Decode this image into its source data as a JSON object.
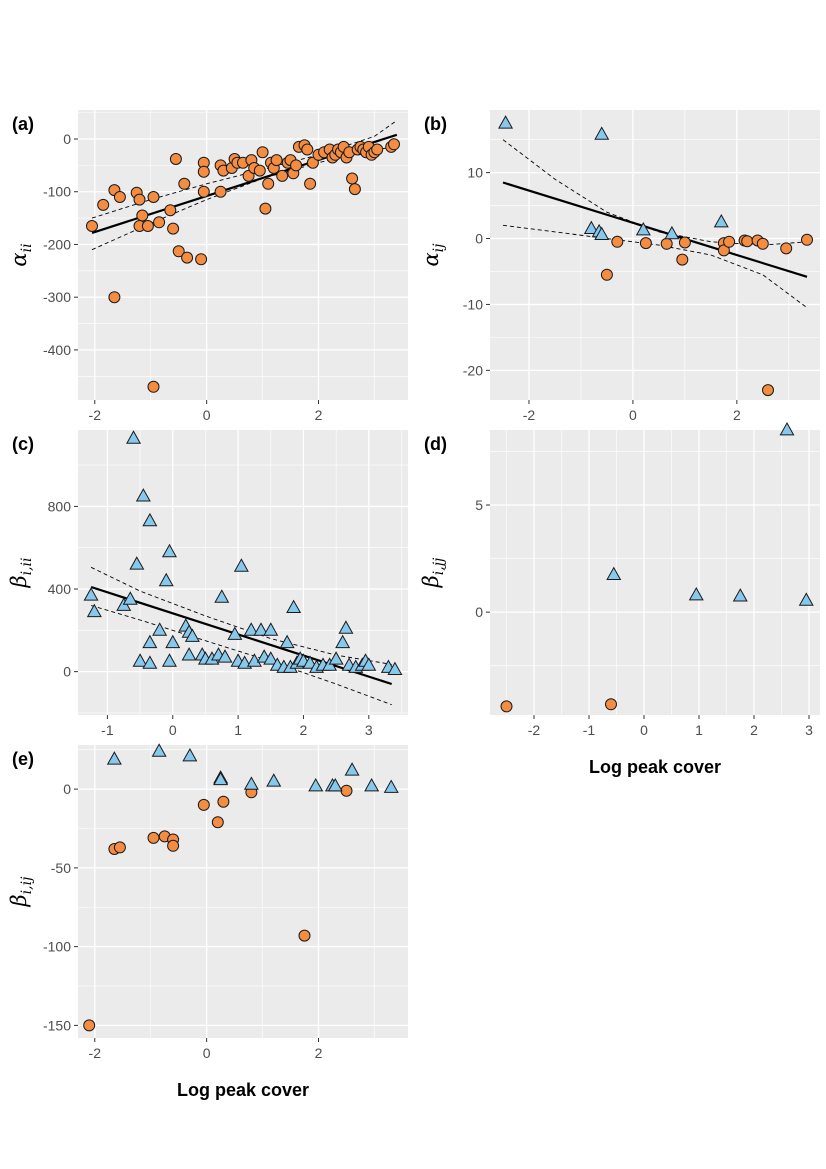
{
  "colors": {
    "panel_bg": "#ebebeb",
    "grid": "#ffffff",
    "circle_fill": "#f48c41",
    "triangle_fill": "#87c8ed",
    "outline": "#1a1a1a",
    "fit_line": "#000000"
  },
  "chart_data": [
    {
      "id": "a",
      "type": "scatter",
      "panel_label": "(a)",
      "ylabel_main": "α",
      "ylabel_sub": "ii",
      "xlabel": "",
      "xlim": [
        -2.3,
        3.6
      ],
      "ylim": [
        -495,
        55
      ],
      "xticks": [
        -2,
        0,
        2
      ],
      "yticks": [
        0,
        -100,
        -200,
        -300,
        -400
      ],
      "xtick_labels": [
        "-2",
        "0",
        "2"
      ],
      "ytick_labels": [
        "0",
        "-100",
        "-200",
        "-300",
        "-400"
      ],
      "fit": {
        "x": [
          -2.05,
          3.4
        ],
        "y": [
          -178,
          8
        ]
      },
      "ci_upper": {
        "x": [
          -2.05,
          -1,
          0,
          1,
          2,
          3,
          3.4
        ],
        "y": [
          -150,
          -115,
          -85,
          -58,
          -30,
          5,
          35
        ]
      },
      "ci_lower": {
        "x": [
          -2.05,
          -1,
          0,
          1,
          2,
          3,
          3.4
        ],
        "y": [
          -210,
          -160,
          -115,
          -75,
          -45,
          -20,
          -15
        ]
      },
      "points_circle": [
        [
          -2.05,
          -165
        ],
        [
          -1.85,
          -125
        ],
        [
          -1.65,
          -97
        ],
        [
          -1.55,
          -110
        ],
        [
          -1.25,
          -102
        ],
        [
          -1.2,
          -115
        ],
        [
          -1.15,
          -145
        ],
        [
          -1.2,
          -165
        ],
        [
          -1.05,
          -165
        ],
        [
          -0.95,
          -110
        ],
        [
          -0.85,
          -158
        ],
        [
          -0.65,
          -135
        ],
        [
          -0.6,
          -170
        ],
        [
          -0.55,
          -38
        ],
        [
          -0.5,
          -213
        ],
        [
          -0.4,
          -85
        ],
        [
          -0.35,
          -225
        ],
        [
          -0.1,
          -228
        ],
        [
          -0.05,
          -45
        ],
        [
          -0.05,
          -100
        ],
        [
          -0.05,
          -62
        ],
        [
          0.25,
          -100
        ],
        [
          0.25,
          -50
        ],
        [
          0.3,
          -60
        ],
        [
          0.45,
          -55
        ],
        [
          0.5,
          -38
        ],
        [
          0.55,
          -45
        ],
        [
          0.65,
          -45
        ],
        [
          0.75,
          -70
        ],
        [
          0.8,
          -40
        ],
        [
          0.85,
          -55
        ],
        [
          0.95,
          -60
        ],
        [
          1.0,
          -25
        ],
        [
          1.05,
          -132
        ],
        [
          1.1,
          -85
        ],
        [
          1.15,
          -45
        ],
        [
          1.2,
          -55
        ],
        [
          1.25,
          -40
        ],
        [
          1.35,
          -70
        ],
        [
          1.45,
          -45
        ],
        [
          1.5,
          -40
        ],
        [
          1.55,
          -65
        ],
        [
          1.6,
          -50
        ],
        [
          1.65,
          -15
        ],
        [
          1.75,
          -12
        ],
        [
          1.8,
          -20
        ],
        [
          1.85,
          -85
        ],
        [
          1.9,
          -45
        ],
        [
          2.0,
          -30
        ],
        [
          2.1,
          -25
        ],
        [
          2.2,
          -20
        ],
        [
          2.25,
          -35
        ],
        [
          2.3,
          -30
        ],
        [
          2.35,
          -20
        ],
        [
          2.4,
          -25
        ],
        [
          2.45,
          -15
        ],
        [
          2.5,
          -35
        ],
        [
          2.55,
          -25
        ],
        [
          2.6,
          -75
        ],
        [
          2.65,
          -95
        ],
        [
          2.7,
          -20
        ],
        [
          2.75,
          -15
        ],
        [
          2.8,
          -20
        ],
        [
          2.85,
          -25
        ],
        [
          2.9,
          -15
        ],
        [
          2.95,
          -30
        ],
        [
          3.0,
          -25
        ],
        [
          3.05,
          -20
        ],
        [
          3.3,
          -15
        ],
        [
          3.35,
          -10
        ],
        [
          -1.65,
          -300
        ],
        [
          -0.95,
          -470
        ]
      ],
      "points_triangle": []
    },
    {
      "id": "b",
      "type": "scatter",
      "panel_label": "(b)",
      "ylabel_main": "α",
      "ylabel_sub": "ij",
      "xlabel": "",
      "xlim": [
        -2.75,
        3.6
      ],
      "ylim": [
        -24.5,
        19.5
      ],
      "xticks": [
        -2,
        0,
        2
      ],
      "yticks": [
        10,
        0,
        -10,
        -20
      ],
      "xtick_labels": [
        "-2",
        "0",
        "2"
      ],
      "ytick_labels": [
        "10",
        "0",
        "-10",
        "-20"
      ],
      "fit": {
        "x": [
          -2.5,
          3.35
        ],
        "y": [
          8.5,
          -5.8
        ]
      },
      "ci_upper": {
        "x": [
          -2.5,
          -1.5,
          -0.5,
          0.5,
          1.5,
          2.5,
          3.35
        ],
        "y": [
          15,
          9,
          4,
          1,
          -0.5,
          -1,
          -0.5
        ]
      },
      "ci_lower": {
        "x": [
          -2.5,
          -1.5,
          -0.5,
          0.5,
          1.5,
          2.5,
          3.35
        ],
        "y": [
          2,
          1,
          0,
          -1,
          -2.5,
          -5.5,
          -10.5
        ]
      },
      "points_circle": [
        [
          -0.5,
          -5.5
        ],
        [
          -0.3,
          -0.5
        ],
        [
          0.25,
          -0.7
        ],
        [
          0.65,
          -0.8
        ],
        [
          0.95,
          -3.2
        ],
        [
          1.0,
          -0.6
        ],
        [
          1.75,
          -0.7
        ],
        [
          1.75,
          -1.8
        ],
        [
          1.85,
          -0.5
        ],
        [
          2.15,
          -0.3
        ],
        [
          2.2,
          -0.4
        ],
        [
          2.4,
          -0.3
        ],
        [
          2.5,
          -0.8
        ],
        [
          2.6,
          -23
        ],
        [
          2.95,
          -1.5
        ],
        [
          3.35,
          -0.2
        ]
      ],
      "points_triangle": [
        [
          -2.45,
          17.5
        ],
        [
          -0.8,
          1.5
        ],
        [
          -0.65,
          1.0
        ],
        [
          -0.6,
          0.6
        ],
        [
          -0.6,
          15.8
        ],
        [
          0.2,
          1.3
        ],
        [
          0.75,
          0.7
        ],
        [
          1.7,
          2.5
        ]
      ]
    },
    {
      "id": "c",
      "type": "scatter",
      "panel_label": "(c)",
      "ylabel_main": "β",
      "ylabel_sub": "i,ii",
      "xlabel": "",
      "xlim": [
        -1.45,
        3.6
      ],
      "ylim": [
        -210,
        1170
      ],
      "xticks": [
        -1,
        0,
        1,
        2,
        3
      ],
      "yticks": [
        0,
        400,
        800
      ],
      "xtick_labels": [
        "-1",
        "0",
        "1",
        "2",
        "3"
      ],
      "ytick_labels": [
        "0",
        "400",
        "800"
      ],
      "fit": {
        "x": [
          -1.25,
          3.35
        ],
        "y": [
          410,
          -60
        ]
      },
      "ci_upper": {
        "x": [
          -1.25,
          -0.5,
          0.5,
          1.5,
          2.5,
          3.35
        ],
        "y": [
          505,
          390,
          270,
          160,
          80,
          35
        ]
      },
      "ci_lower": {
        "x": [
          -1.25,
          -0.5,
          0.5,
          1.5,
          2.5,
          3.35
        ],
        "y": [
          320,
          250,
          150,
          50,
          -60,
          -160
        ]
      },
      "points_circle": [],
      "points_triangle": [
        [
          -1.25,
          370
        ],
        [
          -1.2,
          290
        ],
        [
          -0.75,
          320
        ],
        [
          -0.65,
          350
        ],
        [
          -0.6,
          1130
        ],
        [
          -0.55,
          520
        ],
        [
          -0.5,
          50
        ],
        [
          -0.45,
          850
        ],
        [
          -0.35,
          730
        ],
        [
          -0.35,
          140
        ],
        [
          -0.35,
          40
        ],
        [
          -0.2,
          200
        ],
        [
          -0.1,
          440
        ],
        [
          -0.05,
          50
        ],
        [
          -0.05,
          580
        ],
        [
          0.0,
          140
        ],
        [
          0.2,
          220
        ],
        [
          0.25,
          80
        ],
        [
          0.25,
          190
        ],
        [
          0.3,
          170
        ],
        [
          0.45,
          80
        ],
        [
          0.5,
          60
        ],
        [
          0.6,
          60
        ],
        [
          0.7,
          80
        ],
        [
          0.75,
          360
        ],
        [
          0.8,
          70
        ],
        [
          0.95,
          180
        ],
        [
          1.0,
          50
        ],
        [
          1.05,
          510
        ],
        [
          1.1,
          40
        ],
        [
          1.2,
          200
        ],
        [
          1.25,
          50
        ],
        [
          1.35,
          200
        ],
        [
          1.4,
          70
        ],
        [
          1.5,
          60
        ],
        [
          1.5,
          200
        ],
        [
          1.6,
          30
        ],
        [
          1.7,
          20
        ],
        [
          1.75,
          140
        ],
        [
          1.8,
          20
        ],
        [
          1.85,
          310
        ],
        [
          1.9,
          40
        ],
        [
          1.95,
          60
        ],
        [
          2.0,
          50
        ],
        [
          2.1,
          40
        ],
        [
          2.2,
          20
        ],
        [
          2.3,
          30
        ],
        [
          2.4,
          30
        ],
        [
          2.5,
          60
        ],
        [
          2.6,
          140
        ],
        [
          2.65,
          210
        ],
        [
          2.7,
          30
        ],
        [
          2.8,
          20
        ],
        [
          2.9,
          30
        ],
        [
          2.95,
          50
        ],
        [
          3.0,
          30
        ],
        [
          3.3,
          20
        ],
        [
          3.4,
          10
        ]
      ]
    },
    {
      "id": "d",
      "type": "scatter",
      "panel_label": "(d)",
      "ylabel_main": "β",
      "ylabel_sub": "i,jj",
      "xlabel": "Log peak cover",
      "xlim": [
        -2.8,
        3.2
      ],
      "ylim": [
        -4.8,
        8.5
      ],
      "xticks": [
        -2,
        -1,
        0,
        1,
        2,
        3
      ],
      "yticks": [
        0,
        5
      ],
      "xtick_labels": [
        "-2",
        "-1",
        "0",
        "1",
        "2",
        "3"
      ],
      "ytick_labels": [
        "0",
        "5"
      ],
      "fit": null,
      "points_circle": [
        [
          -2.5,
          -4.4
        ],
        [
          -0.6,
          -4.3
        ]
      ],
      "points_triangle": [
        [
          -0.55,
          1.75
        ],
        [
          0.95,
          0.8
        ],
        [
          1.75,
          0.75
        ],
        [
          2.6,
          8.5
        ],
        [
          2.95,
          0.55
        ]
      ]
    },
    {
      "id": "e",
      "type": "scatter",
      "panel_label": "(e)",
      "ylabel_main": "β",
      "ylabel_sub": "i,ij",
      "xlabel": "Log peak cover",
      "xlim": [
        -2.3,
        3.6
      ],
      "ylim": [
        -158,
        28
      ],
      "xticks": [
        -2,
        0,
        2
      ],
      "yticks": [
        0,
        -50,
        -100,
        -150
      ],
      "xtick_labels": [
        "-2",
        "0",
        "2"
      ],
      "ytick_labels": [
        "0",
        "-50",
        "-100",
        "-150"
      ],
      "fit": null,
      "points_circle": [
        [
          -2.1,
          -150
        ],
        [
          -1.65,
          -38
        ],
        [
          -1.55,
          -37
        ],
        [
          -0.95,
          -31
        ],
        [
          -0.75,
          -30
        ],
        [
          -0.6,
          -32
        ],
        [
          -0.6,
          -36
        ],
        [
          -0.05,
          -10
        ],
        [
          0.2,
          -21
        ],
        [
          0.3,
          -8
        ],
        [
          0.8,
          -2
        ],
        [
          1.75,
          -93
        ],
        [
          2.5,
          -1
        ]
      ],
      "points_triangle": [
        [
          -1.65,
          19
        ],
        [
          -0.85,
          24
        ],
        [
          -0.3,
          21
        ],
        [
          0.25,
          7
        ],
        [
          0.25,
          6
        ],
        [
          0.8,
          3
        ],
        [
          1.2,
          5
        ],
        [
          1.95,
          2
        ],
        [
          2.25,
          2
        ],
        [
          2.3,
          2
        ],
        [
          2.6,
          12
        ],
        [
          2.95,
          2
        ],
        [
          3.3,
          1
        ]
      ]
    }
  ]
}
